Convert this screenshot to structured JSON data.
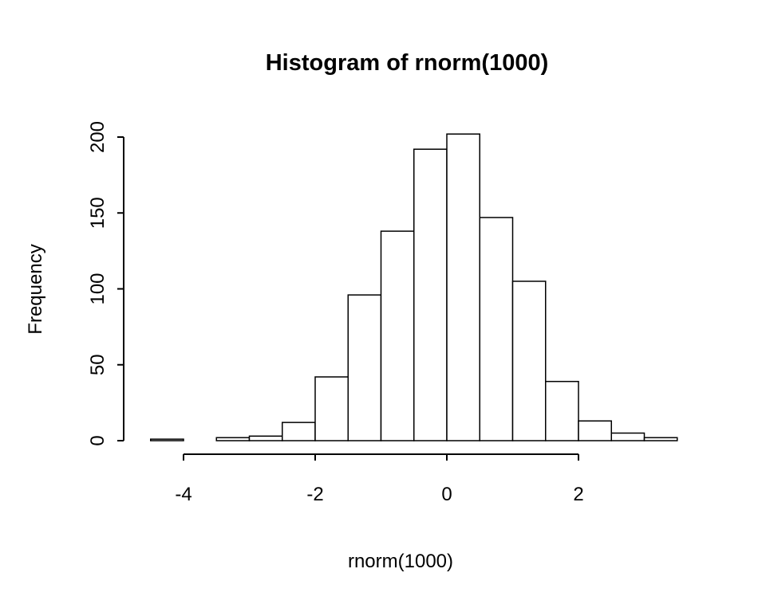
{
  "page": {
    "background": "#ffffff"
  },
  "chart_data": {
    "type": "bar",
    "subtype": "histogram",
    "title": "Histogram of rnorm(1000)",
    "xlabel": "rnorm(1000)",
    "ylabel": "Frequency",
    "bin_start": -4.5,
    "bin_width": 0.5,
    "counts": [
      1,
      0,
      2,
      3,
      12,
      42,
      96,
      138,
      192,
      202,
      147,
      105,
      39,
      13,
      5,
      2
    ],
    "x_ticks": [
      -4,
      -2,
      0,
      2
    ],
    "y_ticks": [
      0,
      50,
      100,
      150,
      200
    ],
    "xlim": [
      -4.5,
      3.5
    ],
    "ylim": [
      0,
      200
    ],
    "grid": false,
    "legend": "none",
    "bar_fill": "#ffffff",
    "bar_stroke": "#000000",
    "axis_color": "#000000",
    "text_color": "#000000"
  }
}
